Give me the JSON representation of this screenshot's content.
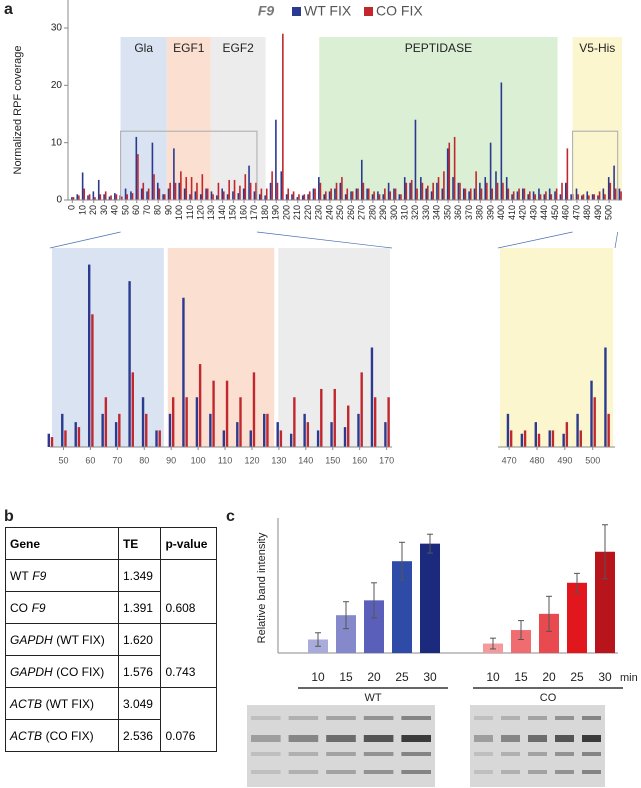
{
  "panel_labels": [
    "a",
    "b",
    "c"
  ],
  "chart_data": [
    {
      "type": "bar",
      "title": "F9",
      "ylabel": "Normalized RPF coverage",
      "x": [
        0,
        5,
        10,
        15,
        20,
        25,
        30,
        35,
        40,
        45,
        50,
        55,
        60,
        65,
        70,
        75,
        80,
        85,
        90,
        95,
        100,
        105,
        110,
        115,
        120,
        125,
        130,
        135,
        140,
        145,
        150,
        155,
        160,
        165,
        170,
        175,
        180,
        185,
        190,
        195,
        200,
        205,
        210,
        215,
        220,
        225,
        230,
        235,
        240,
        245,
        250,
        255,
        260,
        265,
        270,
        275,
        280,
        285,
        290,
        295,
        300,
        305,
        310,
        315,
        320,
        325,
        330,
        335,
        340,
        345,
        350,
        355,
        360,
        365,
        370,
        375,
        380,
        385,
        390,
        395,
        400,
        405,
        410,
        415,
        420,
        425,
        430,
        435,
        440,
        445,
        450,
        455,
        460,
        465,
        470,
        475,
        480,
        485,
        490,
        495,
        500,
        505,
        510
      ],
      "series": [
        {
          "name": "WT FIX",
          "color": "#2b3a8f",
          "values": [
            0.5,
            1,
            4.8,
            0.8,
            1.5,
            3.5,
            1,
            0.6,
            1.2,
            0.8,
            2,
            1.5,
            11,
            2,
            1.5,
            10,
            3,
            1,
            2,
            9,
            3,
            2,
            1,
            1.5,
            1,
            2,
            1.5,
            0.8,
            2,
            1,
            1.5,
            1.2,
            2,
            6,
            1.5,
            1,
            0.8,
            3,
            14,
            5,
            1,
            1,
            0.5,
            0.8,
            1,
            2,
            4,
            1,
            1.5,
            2,
            3,
            1,
            1.5,
            2,
            7,
            2,
            1,
            1.5,
            1,
            3,
            2,
            1,
            4,
            3,
            14,
            4,
            2,
            1.5,
            3,
            2,
            9,
            4,
            3,
            2,
            1.5,
            2,
            3,
            4,
            10,
            5,
            20.5,
            4,
            1,
            1.5,
            2,
            1,
            1.5,
            2,
            1,
            2,
            1.5,
            1,
            3,
            1,
            2,
            0.8,
            1.5,
            1,
            0.8,
            2,
            4,
            6,
            2
          ]
        },
        {
          "name": "CO FIX",
          "color": "#c1272d",
          "values": [
            0.5,
            0.8,
            2,
            1,
            0.5,
            1,
            1.5,
            0.8,
            1,
            0.6,
            1,
            1.2,
            8,
            3,
            2,
            4.5,
            2,
            1,
            3,
            3,
            5,
            4,
            4,
            3,
            4.5,
            2,
            1,
            3,
            1.5,
            3.5,
            3.5,
            2.5,
            4.5,
            3,
            3,
            2,
            2,
            5,
            3,
            29,
            2,
            1.5,
            1,
            1,
            1.5,
            2,
            3,
            1.5,
            2,
            3,
            4,
            2,
            1.5,
            2,
            3,
            2,
            1.5,
            1,
            2,
            1.5,
            2,
            1,
            3,
            3.5,
            2,
            3,
            2.5,
            3,
            4,
            5,
            10,
            11,
            3,
            2,
            2,
            5,
            2,
            3,
            2,
            3,
            3,
            2,
            1.5,
            2,
            2,
            1.5,
            1,
            1,
            1.5,
            1,
            2,
            3,
            9,
            1,
            1,
            1,
            0.8,
            1,
            1.5,
            1,
            3,
            2,
            1.5
          ]
        }
      ],
      "xlim": [
        -4,
        512
      ],
      "ylim": [
        0,
        30
      ],
      "yticks": [
        0,
        10,
        20,
        30
      ],
      "xticks": [
        0,
        10,
        20,
        30,
        40,
        50,
        60,
        70,
        80,
        90,
        100,
        110,
        120,
        130,
        140,
        150,
        160,
        170,
        180,
        190,
        200,
        210,
        220,
        230,
        240,
        250,
        260,
        270,
        280,
        290,
        300,
        310,
        320,
        330,
        340,
        350,
        360,
        370,
        380,
        390,
        400,
        410,
        420,
        430,
        440,
        450,
        460,
        470,
        480,
        490,
        500
      ],
      "regions": [
        {
          "label": "Gla",
          "start": 45,
          "end": 88,
          "color": "#d9e3f2"
        },
        {
          "label": "EGF1",
          "start": 88,
          "end": 129,
          "color": "#fbe0d2"
        },
        {
          "label": "EGF2",
          "start": 129,
          "end": 180,
          "color": "#ececec"
        },
        {
          "label": "PEPTIDASE",
          "start": 230,
          "end": 452,
          "color": "#dbefd5"
        },
        {
          "label": "V5-His",
          "start": 466,
          "end": 512,
          "color": "#fcf6cf"
        }
      ],
      "zooms": [
        {
          "xlim": [
            45,
            172
          ],
          "ylim": [
            0,
            12
          ],
          "xticks": [
            50,
            60,
            70,
            80,
            90,
            100,
            110,
            120,
            130,
            140,
            150,
            160,
            170
          ]
        },
        {
          "xlim": [
            466,
            508
          ],
          "ylim": [
            0,
            12
          ],
          "xticks": [
            470,
            480,
            490,
            500
          ]
        }
      ]
    },
    {
      "type": "bar",
      "ylabel": "Relative band intensity",
      "x_unit": "min",
      "categories": [
        10,
        15,
        20,
        25,
        30
      ],
      "ylim": [
        0,
        10
      ],
      "series": [
        {
          "name": "WT",
          "colors": [
            "#a9abdb",
            "#8589cb",
            "#5a5fb9",
            "#2e4ba7",
            "#1c2a7e"
          ],
          "values": [
            1.0,
            2.8,
            3.9,
            6.8,
            8.1
          ],
          "errors": [
            0.5,
            1.0,
            1.3,
            1.4,
            0.7
          ]
        },
        {
          "name": "CO",
          "colors": [
            "#f39a9c",
            "#ef6d71",
            "#e84a4f",
            "#e2161d",
            "#b7141b"
          ],
          "values": [
            0.7,
            1.7,
            2.9,
            5.2,
            7.5
          ],
          "errors": [
            0.4,
            0.7,
            1.3,
            0.7,
            2.0
          ]
        }
      ]
    }
  ],
  "table": {
    "columns": [
      "Gene",
      "TE",
      "p-value"
    ],
    "rows": [
      {
        "gene": [
          {
            "text": "WT"
          },
          {
            "text": "F9",
            "italic": true
          }
        ],
        "te": "1.349"
      },
      {
        "gene": [
          {
            "text": "CO"
          },
          {
            "text": "F9",
            "italic": true
          }
        ],
        "te": "1.391"
      },
      {
        "gene": [
          {
            "text": "GAPDH",
            "italic": true
          },
          {
            "text": "(WT FIX)"
          }
        ],
        "te": "1.620"
      },
      {
        "gene": [
          {
            "text": "GAPDH",
            "italic": true
          },
          {
            "text": "(CO FIX)"
          }
        ],
        "te": "1.576"
      },
      {
        "gene": [
          {
            "text": "ACTB",
            "italic": true
          },
          {
            "text": "(WT FIX)"
          }
        ],
        "te": "3.049"
      },
      {
        "gene": [
          {
            "text": "ACTB",
            "italic": true
          },
          {
            "text": "(CO FIX)"
          }
        ],
        "te": "2.536"
      }
    ],
    "p_values": [
      "0.608",
      "0.743",
      "0.076"
    ]
  }
}
